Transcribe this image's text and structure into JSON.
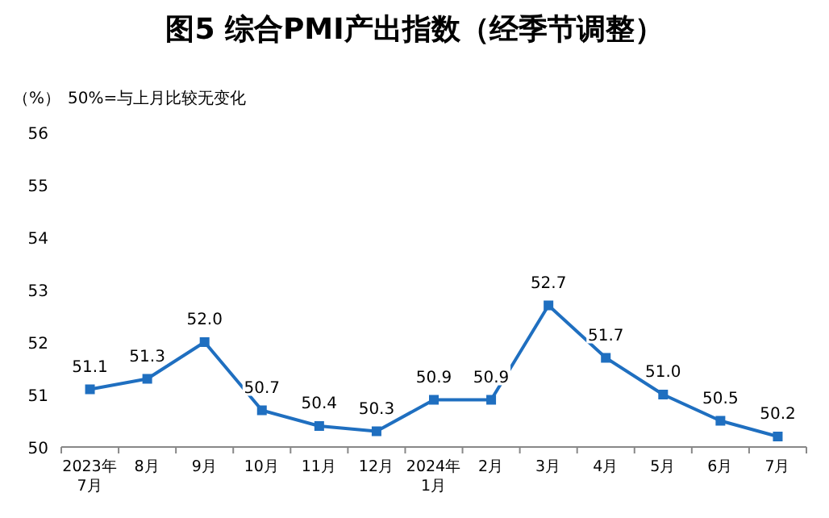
{
  "chart_data": {
    "type": "line",
    "title": "图5 综合PMI产出指数（经季节调整）",
    "ylabel": "（%）",
    "annotations": [
      "50%=与上月比较无变化"
    ],
    "categories": [
      "2023年\n7月",
      "8月",
      "9月",
      "10月",
      "11月",
      "12月",
      "2024年\n1月",
      "2月",
      "3月",
      "4月",
      "5月",
      "6月",
      "7月"
    ],
    "series": [
      {
        "color": "#1f6fc0",
        "values": [
          51.1,
          51.3,
          52.0,
          50.7,
          50.4,
          50.3,
          50.9,
          50.9,
          52.7,
          51.7,
          51.0,
          50.5,
          50.2
        ],
        "value_labels": [
          "51.1",
          "51.3",
          "52.0",
          "50.7",
          "50.4",
          "50.3",
          "50.9",
          "50.9",
          "52.7",
          "51.7",
          "51.0",
          "50.5",
          "50.2"
        ]
      }
    ],
    "ylim": [
      50,
      56
    ],
    "yticks": [
      50,
      51,
      52,
      53,
      54,
      55,
      56
    ],
    "marker": "square",
    "line_style": "solid",
    "grid": false
  }
}
